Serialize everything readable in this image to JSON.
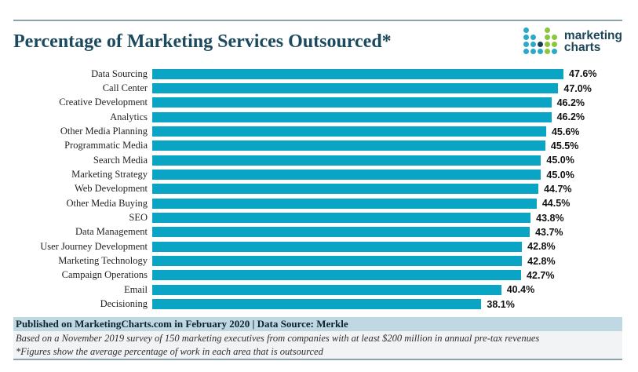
{
  "logo": {
    "line1": "marketing",
    "line2": "charts",
    "dot_pattern": [
      "t..g.",
      "tt.gg",
      "ttngg",
      "tttgt"
    ],
    "colors": {
      "teal": "#2aa9c9",
      "green": "#8cc63f",
      "navy": "#1d3d54",
      "text": "#1e4659"
    }
  },
  "chart_data": {
    "type": "bar",
    "orientation": "horizontal",
    "title": "Percentage of Marketing Services Outsourced*",
    "categories": [
      "Data Sourcing",
      "Call Center",
      "Creative Development",
      "Analytics",
      "Other Media Planning",
      "Programmatic Media",
      "Search Media",
      "Marketing Strategy",
      "Web Development",
      "Other Media Buying",
      "SEO",
      "Data Management",
      "User Journey Development",
      "Marketing Technology",
      "Campaign Operations",
      "Email",
      "Decisioning"
    ],
    "values": [
      47.6,
      47.0,
      46.2,
      46.2,
      45.6,
      45.5,
      45.0,
      45.0,
      44.7,
      44.5,
      43.8,
      43.7,
      42.8,
      42.8,
      42.7,
      40.4,
      38.1
    ],
    "value_labels": [
      "47.6%",
      "47.0%",
      "46.2%",
      "46.2%",
      "45.6%",
      "45.5%",
      "45.0%",
      "45.0%",
      "44.7%",
      "44.5%",
      "43.8%",
      "43.7%",
      "42.8%",
      "42.8%",
      "42.7%",
      "40.4%",
      "38.1%"
    ],
    "xlim": [
      0,
      47.6
    ],
    "bar_color": "#0aa5c5",
    "grid": false,
    "legend": false,
    "value_label_position": "end-of-bar"
  },
  "footer": {
    "published": "Published on MarketingCharts.com in February 2020 | Data Source: Merkle",
    "note1": "Based on a November 2019 survey of 150 marketing executives from companies with at least $200 million in annual pre-tax revenues",
    "note2": "*Figures show the average percentage of work in each area that is outsourced"
  }
}
